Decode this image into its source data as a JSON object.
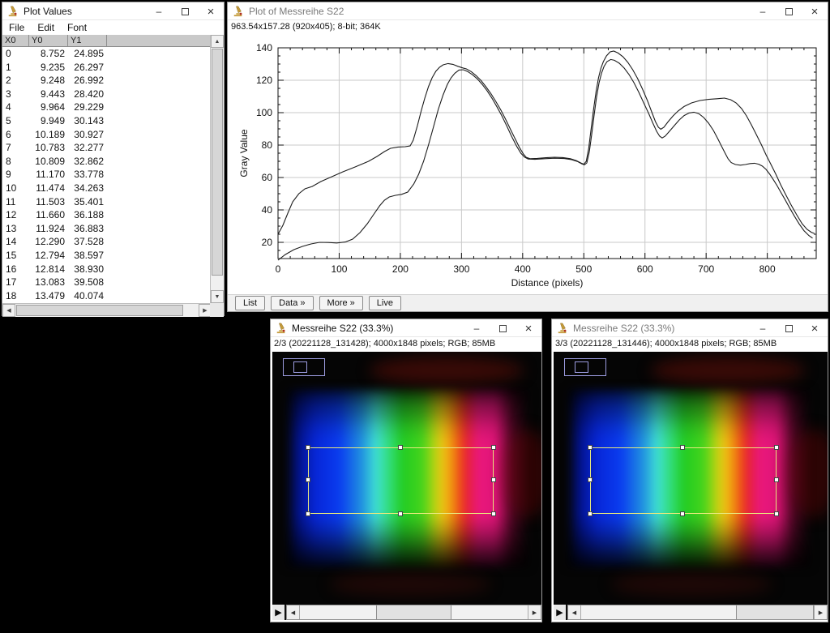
{
  "icons": {
    "up": "▲",
    "down": "▼",
    "left": "◀",
    "right": "▶",
    "play": "▶",
    "minimize": "–",
    "close": "×"
  },
  "plot_values_window": {
    "title": "Plot Values",
    "menu": [
      "File",
      "Edit",
      "Font"
    ],
    "columns": [
      "X0",
      "Y0",
      "Y1"
    ],
    "rows": [
      [
        "0",
        "8.752",
        "24.895"
      ],
      [
        "1",
        "9.235",
        "26.297"
      ],
      [
        "2",
        "9.248",
        "26.992"
      ],
      [
        "3",
        "9.443",
        "28.420"
      ],
      [
        "4",
        "9.964",
        "29.229"
      ],
      [
        "5",
        "9.949",
        "30.143"
      ],
      [
        "6",
        "10.189",
        "30.927"
      ],
      [
        "7",
        "10.783",
        "32.277"
      ],
      [
        "8",
        "10.809",
        "32.862"
      ],
      [
        "9",
        "11.170",
        "33.778"
      ],
      [
        "10",
        "11.474",
        "34.263"
      ],
      [
        "11",
        "11.503",
        "35.401"
      ],
      [
        "12",
        "11.660",
        "36.188"
      ],
      [
        "13",
        "11.924",
        "36.883"
      ],
      [
        "14",
        "12.290",
        "37.528"
      ],
      [
        "15",
        "12.794",
        "38.597"
      ],
      [
        "16",
        "12.814",
        "38.930"
      ],
      [
        "17",
        "13.083",
        "39.508"
      ],
      [
        "18",
        "13.479",
        "40.074"
      ]
    ]
  },
  "plot_window": {
    "title": "Plot of Messreihe S22",
    "status": "963.54x157.28  (920x405); 8-bit; 364K",
    "buttons": [
      "List",
      "Data »",
      "More »",
      "Live"
    ]
  },
  "chart_data": {
    "type": "line",
    "title": "Plot of Messreihe S22",
    "xlabel": "Distance (pixels)",
    "ylabel": "Gray Value",
    "xlim": [
      0,
      880
    ],
    "ylim": [
      10,
      140
    ],
    "x_ticks": [
      0,
      100,
      200,
      300,
      400,
      500,
      600,
      700,
      800
    ],
    "y_ticks": [
      20,
      40,
      60,
      80,
      100,
      120,
      140
    ],
    "grid": true,
    "legend": "none",
    "line_color": "#1c1c1c",
    "series": [
      {
        "name": "Y1",
        "points": [
          [
            0,
            25
          ],
          [
            8,
            30.5
          ],
          [
            16,
            38
          ],
          [
            24,
            45
          ],
          [
            34,
            50
          ],
          [
            44,
            53
          ],
          [
            56,
            54.5
          ],
          [
            70,
            57.5
          ],
          [
            88,
            60.5
          ],
          [
            106,
            63.5
          ],
          [
            126,
            66.5
          ],
          [
            148,
            70
          ],
          [
            162,
            73
          ],
          [
            174,
            76
          ],
          [
            184,
            78
          ],
          [
            196,
            78.8
          ],
          [
            208,
            79
          ],
          [
            216,
            79.5
          ],
          [
            221,
            83
          ],
          [
            228,
            92
          ],
          [
            234,
            101
          ],
          [
            240,
            109
          ],
          [
            246,
            116
          ],
          [
            252,
            121.5
          ],
          [
            258,
            125.5
          ],
          [
            264,
            128
          ],
          [
            270,
            129.5
          ],
          [
            278,
            130.3
          ],
          [
            286,
            129.8
          ],
          [
            294,
            128.6
          ],
          [
            302,
            127.6
          ],
          [
            308,
            127
          ],
          [
            316,
            125.3
          ],
          [
            324,
            122.8
          ],
          [
            332,
            119.8
          ],
          [
            340,
            116
          ],
          [
            348,
            111.8
          ],
          [
            356,
            107
          ],
          [
            364,
            101.8
          ],
          [
            372,
            96
          ],
          [
            380,
            89.8
          ],
          [
            388,
            83.6
          ],
          [
            395,
            78.4
          ],
          [
            401,
            74.6
          ],
          [
            406,
            72.4
          ],
          [
            412,
            71.6
          ],
          [
            424,
            71.8
          ],
          [
            438,
            72.2
          ],
          [
            452,
            72.5
          ],
          [
            466,
            72.3
          ],
          [
            478,
            71.6
          ],
          [
            488,
            70.4
          ],
          [
            495,
            69
          ],
          [
            500,
            68.2
          ],
          [
            504,
            70
          ],
          [
            508,
            78
          ],
          [
            512,
            90
          ],
          [
            516,
            102
          ],
          [
            520,
            113
          ],
          [
            524,
            121.5
          ],
          [
            528,
            127.5
          ],
          [
            532,
            131.5
          ],
          [
            537,
            135
          ],
          [
            543,
            137.5
          ],
          [
            549,
            138
          ],
          [
            556,
            136.8
          ],
          [
            564,
            134.5
          ],
          [
            572,
            131
          ],
          [
            580,
            126.5
          ],
          [
            588,
            121
          ],
          [
            596,
            114.5
          ],
          [
            604,
            107.5
          ],
          [
            611,
            100.5
          ],
          [
            617,
            94.5
          ],
          [
            622,
            91
          ],
          [
            626,
            89.8
          ],
          [
            631,
            91
          ],
          [
            638,
            94.5
          ],
          [
            646,
            98
          ],
          [
            654,
            101
          ],
          [
            664,
            103.8
          ],
          [
            676,
            106
          ],
          [
            690,
            107.5
          ],
          [
            704,
            108.2
          ],
          [
            718,
            108.6
          ],
          [
            730,
            109
          ],
          [
            740,
            108
          ],
          [
            749,
            106
          ],
          [
            758,
            102.5
          ],
          [
            766,
            98
          ],
          [
            774,
            92.5
          ],
          [
            782,
            86.5
          ],
          [
            790,
            80.5
          ],
          [
            798,
            74
          ],
          [
            806,
            68
          ],
          [
            814,
            62
          ],
          [
            822,
            55.5
          ],
          [
            830,
            49.5
          ],
          [
            839,
            43
          ],
          [
            848,
            37
          ],
          [
            857,
            31.5
          ],
          [
            865,
            28
          ],
          [
            872,
            26.2
          ],
          [
            877,
            25.5
          ]
        ]
      },
      {
        "name": "Y0",
        "points": [
          [
            0,
            9
          ],
          [
            12,
            12.5
          ],
          [
            26,
            15.5
          ],
          [
            40,
            17.5
          ],
          [
            54,
            19
          ],
          [
            68,
            20
          ],
          [
            82,
            19.9
          ],
          [
            96,
            19.6
          ],
          [
            110,
            20.2
          ],
          [
            122,
            22
          ],
          [
            134,
            26
          ],
          [
            146,
            31.5
          ],
          [
            156,
            37
          ],
          [
            166,
            42.5
          ],
          [
            174,
            46
          ],
          [
            182,
            48
          ],
          [
            192,
            49
          ],
          [
            202,
            49.6
          ],
          [
            212,
            51
          ],
          [
            222,
            56
          ],
          [
            230,
            62
          ],
          [
            238,
            70
          ],
          [
            246,
            80
          ],
          [
            254,
            91
          ],
          [
            262,
            102
          ],
          [
            270,
            111
          ],
          [
            277,
            117.5
          ],
          [
            283,
            121.5
          ],
          [
            289,
            124.3
          ],
          [
            296,
            126.3
          ],
          [
            303,
            126.5
          ],
          [
            310,
            125.4
          ],
          [
            318,
            123.4
          ],
          [
            326,
            120.8
          ],
          [
            334,
            117.4
          ],
          [
            342,
            113.4
          ],
          [
            350,
            108.8
          ],
          [
            358,
            103.6
          ],
          [
            366,
            98
          ],
          [
            374,
            91.8
          ],
          [
            382,
            85.4
          ],
          [
            390,
            79.4
          ],
          [
            397,
            75
          ],
          [
            403,
            72.6
          ],
          [
            409,
            71.4
          ],
          [
            420,
            71.2
          ],
          [
            436,
            71.6
          ],
          [
            452,
            71.9
          ],
          [
            468,
            71.7
          ],
          [
            480,
            71
          ],
          [
            490,
            69.8
          ],
          [
            497,
            68.4
          ],
          [
            501,
            67.8
          ],
          [
            505,
            69
          ],
          [
            509,
            76
          ],
          [
            513,
            87
          ],
          [
            517,
            99
          ],
          [
            521,
            110
          ],
          [
            525,
            118.5
          ],
          [
            529,
            124.5
          ],
          [
            533,
            128.5
          ],
          [
            538,
            131.5
          ],
          [
            544,
            132.8
          ],
          [
            550,
            132.3
          ],
          [
            558,
            130.5
          ],
          [
            566,
            127.5
          ],
          [
            574,
            123.5
          ],
          [
            582,
            118.5
          ],
          [
            590,
            112.5
          ],
          [
            598,
            106
          ],
          [
            606,
            99.5
          ],
          [
            613,
            93.5
          ],
          [
            619,
            88.5
          ],
          [
            624,
            85.5
          ],
          [
            628,
            84.4
          ],
          [
            633,
            85.5
          ],
          [
            640,
            88.5
          ],
          [
            648,
            92
          ],
          [
            656,
            95.5
          ],
          [
            664,
            98.2
          ],
          [
            672,
            99.8
          ],
          [
            680,
            100.3
          ],
          [
            688,
            99.4
          ],
          [
            696,
            97
          ],
          [
            704,
            93.5
          ],
          [
            712,
            89
          ],
          [
            719,
            84
          ],
          [
            725,
            79.5
          ],
          [
            731,
            75
          ],
          [
            736,
            71.5
          ],
          [
            741,
            69.2
          ],
          [
            748,
            68
          ],
          [
            756,
            67.6
          ],
          [
            764,
            68
          ],
          [
            772,
            68.6
          ],
          [
            779,
            68.8
          ],
          [
            786,
            68.2
          ],
          [
            792,
            67
          ],
          [
            798,
            65
          ],
          [
            804,
            62
          ],
          [
            810,
            58.6
          ],
          [
            816,
            55
          ],
          [
            822,
            51
          ],
          [
            829,
            46.4
          ],
          [
            836,
            41.6
          ],
          [
            844,
            36.4
          ],
          [
            852,
            31.4
          ],
          [
            860,
            27.2
          ],
          [
            868,
            24.2
          ],
          [
            874,
            22.6
          ]
        ]
      }
    ]
  },
  "image_window_2": {
    "title": "Messreihe S22 (33.3%)",
    "status": "2/3 (20221128_131428); 4000x1848 pixels; RGB; 85MB",
    "slice_index": 2,
    "total_slices": 3
  },
  "image_window_3": {
    "title": "Messreihe S22 (33.3%)",
    "status": "3/3 (20221128_131446); 4000x1848 pixels; RGB; 85MB",
    "slice_index": 3,
    "total_slices": 3
  },
  "colors": {
    "roi": "#e8e87c",
    "grid": "#c9c9c9",
    "nav_indicator": "#9c9ce0",
    "spectrum_gradient": [
      [
        "rgba(0,8,50,0)",
        "0%"
      ],
      [
        "#02128a",
        "5%"
      ],
      [
        "#0726d8",
        "12%"
      ],
      [
        "#0a3cf0",
        "22%"
      ],
      [
        "#2090e0",
        "31%"
      ],
      [
        "#3fe0d4",
        "37%"
      ],
      [
        "#30dc70",
        "43%"
      ],
      [
        "#22cc22",
        "48%"
      ],
      [
        "#44d41c",
        "56%"
      ],
      [
        "#b4d412",
        "61%"
      ],
      [
        "#eec414",
        "64.5%"
      ],
      [
        "#f09410",
        "68%"
      ],
      [
        "#ee4e18",
        "71.5%"
      ],
      [
        "#e62038",
        "74.5%"
      ],
      [
        "#ea187c",
        "79%"
      ],
      [
        "#e01478",
        "86%"
      ],
      [
        "rgba(140,8,60,0.5)",
        "93%"
      ],
      [
        "rgba(30,0,16,0)",
        "100%"
      ]
    ]
  }
}
